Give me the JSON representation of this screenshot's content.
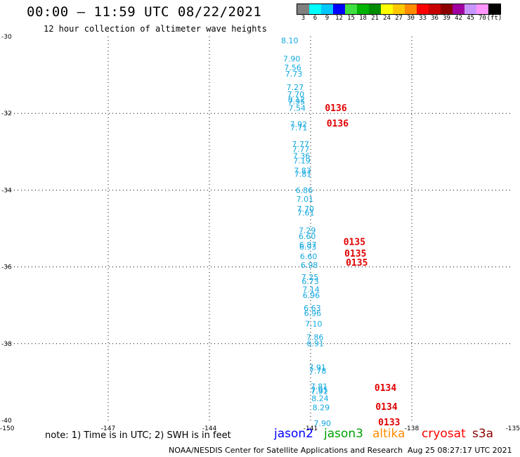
{
  "header": {
    "title": "00:00 – 11:59 UTC 08/22/2021",
    "subtitle": "12 hour collection of altimeter wave heights"
  },
  "legend": {
    "colors": [
      "#808080",
      "#00ffff",
      "#00c8ff",
      "#0000ff",
      "#40e040",
      "#00b400",
      "#008c00",
      "#ffff00",
      "#ffc800",
      "#ff8c00",
      "#ff0000",
      "#c80000",
      "#8c0000",
      "#a000a0",
      "#c896ff",
      "#ff96ff",
      "#000000"
    ],
    "labels": [
      "3",
      "6",
      "9",
      "12",
      "15",
      "18",
      "21",
      "24",
      "27",
      "30",
      "33",
      "36",
      "39",
      "42",
      "45",
      "70",
      "(ft)"
    ]
  },
  "footer": {
    "note": "note:  1) Time is in UTC;  2) SWH is in feet",
    "satellites": [
      {
        "name": "jason2",
        "color": "#0000ff"
      },
      {
        "name": "jason3",
        "color": "#00a000"
      },
      {
        "name": "altika",
        "color": "#ff8c00"
      },
      {
        "name": "cryosat",
        "color": "#ff0000"
      },
      {
        "name": "s3a",
        "color": "#8c0000"
      }
    ],
    "credit": "NOAA/NESDIS Center for Satellite Applications and Research",
    "timestamp": "Aug 25 08:27:17 UTC 2021"
  },
  "chart_data": {
    "type": "scatter",
    "title": "00:00 – 11:59 UTC 08/22/2021",
    "subtitle": "12 hour collection of altimeter wave heights",
    "xlim": [
      -150,
      -135
    ],
    "ylim": [
      -40,
      -30
    ],
    "x_ticks": [
      "-150",
      "-147",
      "-144",
      "-141",
      "-138",
      "-135"
    ],
    "y_ticks": [
      "-30",
      "-32",
      "-34",
      "-36",
      "-38",
      "-40"
    ],
    "grid": true,
    "units": "ft",
    "points": [
      {
        "lon": -141.62,
        "lat": -30.1,
        "swh": "8.10"
      },
      {
        "lon": -141.56,
        "lat": -30.58,
        "swh": "7.90"
      },
      {
        "lon": -141.53,
        "lat": -30.81,
        "swh": "7.56"
      },
      {
        "lon": -141.5,
        "lat": -30.97,
        "swh": "7.73"
      },
      {
        "lon": -141.46,
        "lat": -31.32,
        "swh": "7.27"
      },
      {
        "lon": -141.44,
        "lat": -31.5,
        "swh": "7.70"
      },
      {
        "lon": -141.42,
        "lat": -31.64,
        "swh": "8.12"
      },
      {
        "lon": -141.42,
        "lat": -31.69,
        "swh": "7.95"
      },
      {
        "lon": -141.4,
        "lat": -31.86,
        "swh": "7.54"
      },
      {
        "lon": -141.36,
        "lat": -32.28,
        "swh": "7.92"
      },
      {
        "lon": -141.35,
        "lat": -32.37,
        "swh": "7.71"
      },
      {
        "lon": -141.3,
        "lat": -32.8,
        "swh": "7.77"
      },
      {
        "lon": -141.29,
        "lat": -32.93,
        "swh": "7.77"
      },
      {
        "lon": -141.27,
        "lat": -33.1,
        "swh": "7.36"
      },
      {
        "lon": -141.26,
        "lat": -33.23,
        "swh": "7.19"
      },
      {
        "lon": -141.24,
        "lat": -33.49,
        "swh": "7.83"
      },
      {
        "lon": -141.23,
        "lat": -33.58,
        "swh": "7.81"
      },
      {
        "lon": -141.19,
        "lat": -34.0,
        "swh": "6.86"
      },
      {
        "lon": -141.17,
        "lat": -34.23,
        "swh": "7.01"
      },
      {
        "lon": -141.15,
        "lat": -34.49,
        "swh": "7.70"
      },
      {
        "lon": -141.14,
        "lat": -34.59,
        "swh": "7.61"
      },
      {
        "lon": -141.1,
        "lat": -35.05,
        "swh": "7.29"
      },
      {
        "lon": -141.1,
        "lat": -35.2,
        "swh": "6.60"
      },
      {
        "lon": -141.08,
        "lat": -35.42,
        "swh": "6.87"
      },
      {
        "lon": -141.08,
        "lat": -35.48,
        "swh": "6.93"
      },
      {
        "lon": -141.06,
        "lat": -35.72,
        "swh": "6.60"
      },
      {
        "lon": -141.04,
        "lat": -35.95,
        "swh": "6.98"
      },
      {
        "lon": -141.02,
        "lat": -36.26,
        "swh": "7.25"
      },
      {
        "lon": -141.01,
        "lat": -36.37,
        "swh": "6.73"
      },
      {
        "lon": -140.99,
        "lat": -36.58,
        "swh": "7.14"
      },
      {
        "lon": -140.98,
        "lat": -36.74,
        "swh": "6.96"
      },
      {
        "lon": -140.95,
        "lat": -37.07,
        "swh": "6.63"
      },
      {
        "lon": -140.94,
        "lat": -37.21,
        "swh": "6.96"
      },
      {
        "lon": -140.91,
        "lat": -37.48,
        "swh": "7.10"
      },
      {
        "lon": -140.87,
        "lat": -37.83,
        "swh": "7.86"
      },
      {
        "lon": -140.86,
        "lat": -37.99,
        "swh": "6.91"
      },
      {
        "lon": -140.8,
        "lat": -38.62,
        "swh": "7.91"
      },
      {
        "lon": -140.79,
        "lat": -38.71,
        "swh": "7.78"
      },
      {
        "lon": -140.75,
        "lat": -39.11,
        "swh": "7.81"
      },
      {
        "lon": -140.74,
        "lat": -39.2,
        "swh": "7.95"
      },
      {
        "lon": -140.74,
        "lat": -39.24,
        "swh": "7.91"
      },
      {
        "lon": -140.72,
        "lat": -39.42,
        "swh": "8.24"
      },
      {
        "lon": -140.69,
        "lat": -39.66,
        "swh": "8.29"
      },
      {
        "lon": -140.65,
        "lat": -40.07,
        "swh": "7.90"
      }
    ],
    "time_labels": [
      {
        "lon": -140.25,
        "lat": -31.85,
        "text": "0136"
      },
      {
        "lon": -140.2,
        "lat": -32.25,
        "text": "0136"
      },
      {
        "lon": -139.7,
        "lat": -35.34,
        "text": "0135"
      },
      {
        "lon": -139.67,
        "lat": -35.64,
        "text": "0135"
      },
      {
        "lon": -139.63,
        "lat": -35.88,
        "text": "0135"
      },
      {
        "lon": -138.78,
        "lat": -39.14,
        "text": "0134"
      },
      {
        "lon": -138.75,
        "lat": -39.63,
        "text": "0134"
      },
      {
        "lon": -138.67,
        "lat": -40.04,
        "text": "0133"
      }
    ],
    "swh_color": "#10a8e0",
    "time_color": "#e00000"
  }
}
